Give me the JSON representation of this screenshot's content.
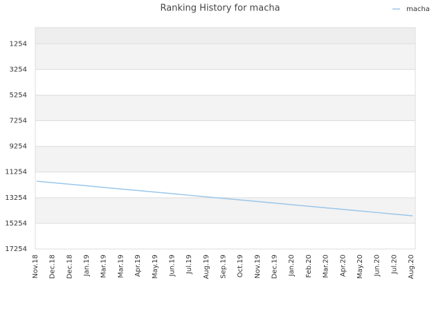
{
  "chart_data": {
    "type": "line",
    "title": "Ranking History for macha",
    "categories": [
      "Nov.18",
      "Dec.18",
      "Dec.18",
      "Jan.19",
      "Mar.19",
      "Mar.19",
      "Apr.19",
      "May.19",
      "Jun.19",
      "Jul.19",
      "Aug.19",
      "Sep.19",
      "Oct.19",
      "Nov.19",
      "Dec.19",
      "Jan.20",
      "Feb.20",
      "Mar.20",
      "Apr.20",
      "May.20",
      "Jun.20",
      "Jul.20",
      "Aug.20"
    ],
    "series": [
      {
        "name": "macha",
        "color": "#99c6ea",
        "values": [
          11970,
          12092,
          12215,
          12337,
          12460,
          12582,
          12705,
          12827,
          12950,
          13072,
          13195,
          13317,
          13440,
          13562,
          13685,
          13807,
          13930,
          14052,
          14175,
          14297,
          14420,
          14542,
          14666
        ]
      }
    ],
    "ylim": [
      0,
      17254
    ],
    "invert_y": true,
    "yticks": [
      1254,
      3254,
      5254,
      7254,
      9254,
      11254,
      13254,
      15254,
      17254
    ],
    "grid": true,
    "legend": "top-right"
  }
}
